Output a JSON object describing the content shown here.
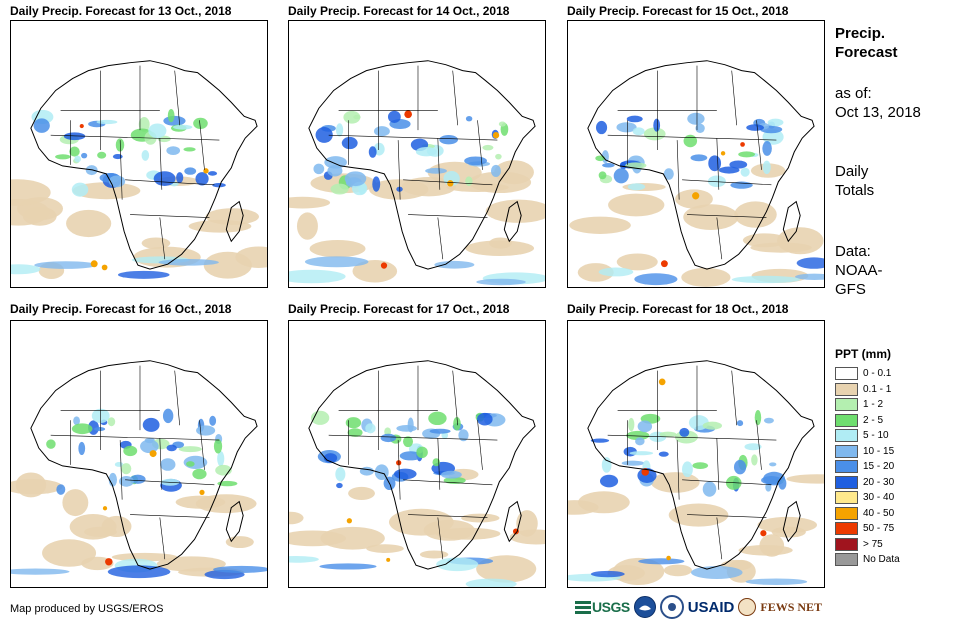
{
  "panels": [
    {
      "title": "Daily Precip. Forecast for 13 Oct., 2018"
    },
    {
      "title": "Daily Precip. Forecast for 14 Oct., 2018"
    },
    {
      "title": "Daily Precip. Forecast for 15 Oct., 2018"
    },
    {
      "title": "Daily Precip. Forecast for 16 Oct., 2018"
    },
    {
      "title": "Daily Precip. Forecast for 17 Oct., 2018"
    },
    {
      "title": "Daily Precip. Forecast for 18 Oct., 2018"
    }
  ],
  "sidebar": {
    "title_line1": "Precip.",
    "title_line2": "Forecast",
    "asof_label": "as of:",
    "asof_date": "Oct 13, 2018",
    "totals_line1": "Daily",
    "totals_line2": "Totals",
    "data_label": "Data:",
    "data_line1": "NOAA-",
    "data_line2": "GFS"
  },
  "legend": {
    "title": "PPT (mm)",
    "items": [
      {
        "label": "0 - 0.1",
        "color": "#ffffff"
      },
      {
        "label": "0.1 - 1",
        "color": "#e8d3b0"
      },
      {
        "label": "1 - 2",
        "color": "#b4efb0"
      },
      {
        "label": "2 - 5",
        "color": "#6fde6f"
      },
      {
        "label": "5 - 10",
        "color": "#b0ecf4"
      },
      {
        "label": "10 - 15",
        "color": "#7fb8ee"
      },
      {
        "label": "15 - 20",
        "color": "#4a8fe8"
      },
      {
        "label": "20 - 30",
        "color": "#1f5fe0"
      },
      {
        "label": "30 - 40",
        "color": "#ffe98c"
      },
      {
        "label": "40 - 50",
        "color": "#f5a300"
      },
      {
        "label": "50 - 75",
        "color": "#ec3a00"
      },
      {
        "label": "> 75",
        "color": "#a0141e"
      },
      {
        "label": "No Data",
        "color": "#999999"
      }
    ]
  },
  "footer": {
    "credit": "Map produced by USGS/EROS",
    "logo_usgs": "USGS",
    "logo_usaid": "USAID",
    "logo_fews": "FEWS NET"
  }
}
